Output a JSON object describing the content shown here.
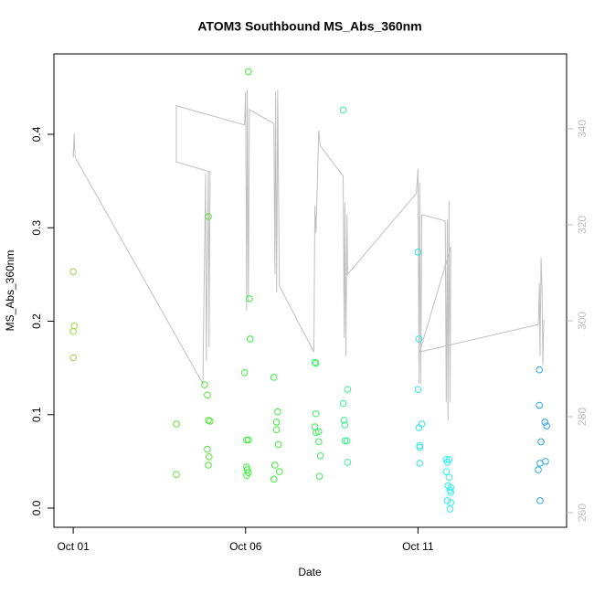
{
  "chart_data": {
    "type": "scatter",
    "title": "ATOM3 Southbound MS_Abs_360nm",
    "xlabel": "Date",
    "ylabel": "MS_Abs_360nm",
    "xlim": [
      0.44,
      15.31
    ],
    "xticks": [
      {
        "value": 1,
        "label": "Oct 01"
      },
      {
        "value": 6,
        "label": "Oct 06"
      },
      {
        "value": 11,
        "label": "Oct 11"
      }
    ],
    "ylim": [
      -0.0205,
      0.486
    ],
    "yticks": [
      {
        "value": 0,
        "label": "0.0"
      },
      0.1,
      0.2,
      0.3,
      0.4
    ],
    "y2lim": [
      256.95,
      355.6
    ],
    "y2ticks": [
      260,
      280,
      300,
      320,
      340
    ],
    "y2color": "#bebebe",
    "x": [
      1.0,
      1.0,
      1.03,
      1.0,
      3.99,
      3.99,
      4.81,
      4.89,
      4.92,
      4.92,
      4.97,
      4.89,
      4.94,
      4.92,
      6.08,
      6.11,
      6.13,
      5.97,
      6.03,
      6.08,
      6.03,
      6.05,
      6.08,
      6.03,
      6.82,
      6.93,
      6.9,
      6.9,
      6.95,
      6.85,
      6.98,
      6.82,
      8.04,
      8.01,
      8.04,
      8.01,
      8.12,
      8.04,
      8.12,
      8.17,
      8.14,
      8.83,
      8.96,
      8.83,
      8.86,
      8.88,
      8.88,
      8.94,
      8.96,
      11.0,
      11.03,
      11.0,
      11.03,
      11.05,
      11.05,
      11.11,
      11.05,
      11.82,
      11.85,
      11.9,
      11.82,
      11.9,
      11.87,
      11.95,
      11.93,
      11.95,
      11.85,
      11.95,
      11.93,
      14.52,
      14.52,
      14.57,
      14.68,
      14.73,
      14.7,
      14.54,
      14.49,
      14.54
    ],
    "values": [
      0.253,
      0.189,
      0.195,
      0.161,
      0.09,
      0.036,
      0.132,
      0.121,
      0.312,
      0.094,
      0.093,
      0.063,
      0.055,
      0.046,
      0.467,
      0.224,
      0.181,
      0.145,
      0.073,
      0.073,
      0.044,
      0.041,
      0.038,
      0.035,
      0.14,
      0.103,
      0.092,
      0.084,
      0.068,
      0.046,
      0.039,
      0.031,
      0.155,
      0.156,
      0.101,
      0.087,
      0.082,
      0.081,
      0.071,
      0.056,
      0.034,
      0.426,
      0.127,
      0.112,
      0.094,
      0.089,
      0.072,
      0.072,
      0.049,
      0.274,
      0.181,
      0.127,
      0.086,
      0.067,
      0.065,
      0.09,
      0.048,
      0.052,
      0.049,
      0.052,
      0.039,
      0.033,
      0.024,
      0.022,
      0.019,
      0.017,
      0.008,
      0.006,
      -0.001,
      0.148,
      0.11,
      0.071,
      0.092,
      0.088,
      0.05,
      0.048,
      0.041,
      0.008
    ],
    "colors": [
      "#9ad83a",
      "#9ad83a",
      "#9ad83a",
      "#9ad83a",
      "#66e033",
      "#66e033",
      "#55e833",
      "#55e833",
      "#55e833",
      "#55e833",
      "#55e833",
      "#55e833",
      "#55e833",
      "#55e833",
      "#3af03a",
      "#3af03a",
      "#3af03a",
      "#3af03a",
      "#3af03a",
      "#3af03a",
      "#3af03a",
      "#3af03a",
      "#3af03a",
      "#3af03a",
      "#3af03a",
      "#3af03a",
      "#3af03a",
      "#3af03a",
      "#3af03a",
      "#3af03a",
      "#3af03a",
      "#3af03a",
      "#3af060",
      "#3af060",
      "#3af060",
      "#3af060",
      "#3af060",
      "#3af060",
      "#3af060",
      "#3af060",
      "#3af060",
      "#3af090",
      "#3af090",
      "#3af090",
      "#3af090",
      "#3af090",
      "#3af090",
      "#3af090",
      "#3af090",
      "#33e8e0",
      "#33e8e0",
      "#33e8e0",
      "#33e8e0",
      "#33e8e0",
      "#33e8e0",
      "#33e8e0",
      "#33e8e0",
      "#33f0f0",
      "#33f0f0",
      "#33f0f0",
      "#33f0f0",
      "#33f0f0",
      "#33f0f0",
      "#33f0f0",
      "#33f0f0",
      "#33f0f0",
      "#33f0f0",
      "#33f0f0",
      "#33f0f0",
      "#2aa8e0",
      "#2aa8e0",
      "#2aa8e0",
      "#2aa8e0",
      "#2aa8e0",
      "#2aa8e0",
      "#2aa8e0",
      "#2aa8e0",
      "#2aa8e0"
    ],
    "line": {
      "axis": "y2",
      "color": "#c0c0c0",
      "x": [
        1.0,
        1.03,
        1.05,
        4.76,
        4.84,
        4.86,
        4.92,
        4.94,
        4.97,
        3.99,
        3.99,
        5.97,
        6.0,
        6.03,
        6.05,
        6.08,
        6.11,
        6.82,
        6.85,
        6.87,
        6.9,
        6.93,
        6.98,
        7.98,
        8.01,
        8.04,
        8.06,
        8.12,
        8.17,
        8.83,
        8.86,
        8.88,
        8.91,
        8.94,
        8.96,
        10.95,
        11.0,
        11.03,
        11.05,
        11.08,
        11.11,
        11.79,
        11.82,
        11.85,
        11.87,
        11.9,
        11.93,
        11.95,
        11.05,
        14.49,
        14.52,
        14.54,
        14.57,
        14.6,
        14.62,
        14.65
      ],
      "values": [
        334.1,
        339.0,
        334.1,
        286.9,
        330.7,
        291.6,
        331.0,
        294.5,
        331.0,
        333.1,
        344.8,
        340.8,
        347.8,
        302.1,
        348.2,
        304.0,
        344.0,
        341.1,
        309.7,
        347.8,
        305.9,
        348.2,
        307.2,
        293.5,
        324.0,
        318.3,
        323.0,
        339.6,
        336.4,
        330.1,
        296.4,
        324.6,
        292.6,
        322.1,
        309.7,
        326.5,
        331.6,
        286.9,
        328.8,
        286.9,
        322.1,
        320.8,
        283.0,
        321.1,
        279.2,
        325.0,
        283.0,
        315.4,
        293.5,
        299.2,
        307.8,
        292.6,
        313.1,
        305.9,
        290.7,
        300.2
      ]
    }
  }
}
